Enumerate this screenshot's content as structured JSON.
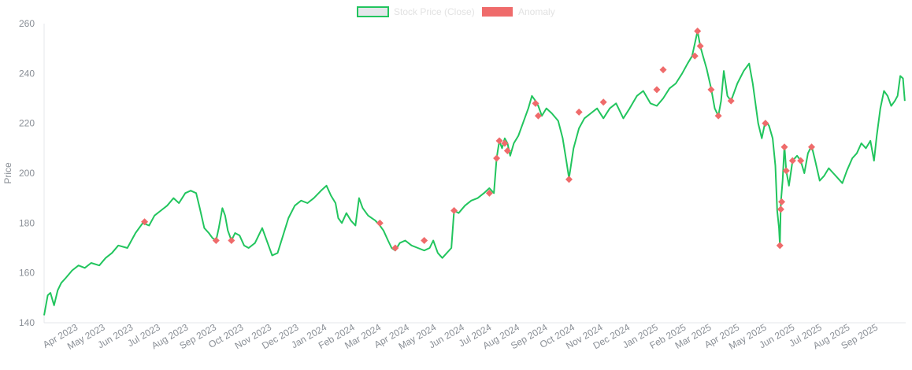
{
  "chart_data": {
    "type": "line",
    "ylabel": "Price",
    "xlabel": "",
    "ylim": [
      140,
      260
    ],
    "y_ticks": [
      "260",
      "240",
      "220",
      "200",
      "180",
      "160",
      "140"
    ],
    "x_tick_labels": [
      "Apr 2023",
      "May 2023",
      "Jun 2023",
      "Jul 2023",
      "Aug 2023",
      "Sep 2023",
      "Oct 2023",
      "Nov 2023",
      "Dec 2023",
      "Jan 2024",
      "Feb 2024",
      "Mar 2024",
      "Apr 2024",
      "May 2024",
      "Jun 2024",
      "Jul 2024",
      "Aug 2024",
      "Sep 2024",
      "Oct 2024",
      "Nov 2024",
      "Dec 2024",
      "Jan 2025",
      "Feb 2025",
      "Mar 2025",
      "Apr 2025",
      "May 2025",
      "Jun 2025",
      "Jul 2025",
      "Aug 2025",
      "Sep 2025"
    ],
    "grid": false,
    "legend_position": "top-center",
    "series": [
      {
        "name": "Stock Price (Close)",
        "color": "#22c55e",
        "fill": "#e5e7eb",
        "points": [
          [
            "2023-03-01",
            143
          ],
          [
            "2023-03-05",
            151
          ],
          [
            "2023-03-08",
            152
          ],
          [
            "2023-03-12",
            147
          ],
          [
            "2023-03-16",
            153
          ],
          [
            "2023-03-20",
            156
          ],
          [
            "2023-03-25",
            158
          ],
          [
            "2023-04-01",
            161
          ],
          [
            "2023-04-08",
            163
          ],
          [
            "2023-04-15",
            162
          ],
          [
            "2023-04-22",
            164
          ],
          [
            "2023-05-01",
            163
          ],
          [
            "2023-05-08",
            166
          ],
          [
            "2023-05-15",
            168
          ],
          [
            "2023-05-22",
            171
          ],
          [
            "2023-06-01",
            170
          ],
          [
            "2023-06-10",
            176
          ],
          [
            "2023-06-18",
            180
          ],
          [
            "2023-06-25",
            179
          ],
          [
            "2023-07-01",
            183
          ],
          [
            "2023-07-08",
            185
          ],
          [
            "2023-07-15",
            187
          ],
          [
            "2023-07-22",
            190
          ],
          [
            "2023-07-28",
            188
          ],
          [
            "2023-08-04",
            192
          ],
          [
            "2023-08-10",
            193
          ],
          [
            "2023-08-16",
            192
          ],
          [
            "2023-08-20",
            186
          ],
          [
            "2023-08-25",
            178
          ],
          [
            "2023-08-30",
            176
          ],
          [
            "2023-09-03",
            174
          ],
          [
            "2023-09-07",
            173
          ],
          [
            "2023-09-10",
            178
          ],
          [
            "2023-09-14",
            186
          ],
          [
            "2023-09-17",
            183
          ],
          [
            "2023-09-20",
            177
          ],
          [
            "2023-09-24",
            173
          ],
          [
            "2023-09-28",
            176
          ],
          [
            "2023-10-03",
            175
          ],
          [
            "2023-10-08",
            171
          ],
          [
            "2023-10-13",
            170
          ],
          [
            "2023-10-20",
            172
          ],
          [
            "2023-10-28",
            178
          ],
          [
            "2023-11-03",
            172
          ],
          [
            "2023-11-08",
            167
          ],
          [
            "2023-11-14",
            168
          ],
          [
            "2023-11-20",
            175
          ],
          [
            "2023-11-26",
            182
          ],
          [
            "2023-12-03",
            187
          ],
          [
            "2023-12-10",
            189
          ],
          [
            "2023-12-17",
            188
          ],
          [
            "2023-12-24",
            190
          ],
          [
            "2024-01-01",
            193
          ],
          [
            "2024-01-07",
            195
          ],
          [
            "2024-01-12",
            191
          ],
          [
            "2024-01-17",
            188
          ],
          [
            "2024-01-20",
            182
          ],
          [
            "2024-01-24",
            180
          ],
          [
            "2024-01-29",
            184
          ],
          [
            "2024-02-03",
            181
          ],
          [
            "2024-02-08",
            179
          ],
          [
            "2024-02-12",
            190
          ],
          [
            "2024-02-16",
            186
          ],
          [
            "2024-02-22",
            183
          ],
          [
            "2024-03-01",
            181
          ],
          [
            "2024-03-06",
            179
          ],
          [
            "2024-03-10",
            177
          ],
          [
            "2024-03-15",
            173
          ],
          [
            "2024-03-19",
            170
          ],
          [
            "2024-03-23",
            169
          ],
          [
            "2024-03-28",
            172
          ],
          [
            "2024-04-03",
            173
          ],
          [
            "2024-04-10",
            171
          ],
          [
            "2024-04-17",
            170
          ],
          [
            "2024-04-24",
            169
          ],
          [
            "2024-04-30",
            170
          ],
          [
            "2024-05-04",
            173
          ],
          [
            "2024-05-09",
            168
          ],
          [
            "2024-05-14",
            166
          ],
          [
            "2024-05-19",
            168
          ],
          [
            "2024-05-24",
            170
          ],
          [
            "2024-05-27",
            185
          ],
          [
            "2024-06-01",
            184
          ],
          [
            "2024-06-08",
            187
          ],
          [
            "2024-06-15",
            189
          ],
          [
            "2024-06-22",
            190
          ],
          [
            "2024-06-29",
            192
          ],
          [
            "2024-07-05",
            194
          ],
          [
            "2024-07-10",
            192
          ],
          [
            "2024-07-13",
            206
          ],
          [
            "2024-07-16",
            213
          ],
          [
            "2024-07-19",
            210
          ],
          [
            "2024-07-22",
            214
          ],
          [
            "2024-07-25",
            212
          ],
          [
            "2024-07-28",
            207
          ],
          [
            "2024-08-01",
            212
          ],
          [
            "2024-08-06",
            215
          ],
          [
            "2024-08-11",
            220
          ],
          [
            "2024-08-17",
            226
          ],
          [
            "2024-08-21",
            231
          ],
          [
            "2024-08-25",
            229
          ],
          [
            "2024-08-28",
            227
          ],
          [
            "2024-09-01",
            223
          ],
          [
            "2024-09-06",
            226
          ],
          [
            "2024-09-12",
            224
          ],
          [
            "2024-09-19",
            221
          ],
          [
            "2024-09-24",
            214
          ],
          [
            "2024-09-28",
            205
          ],
          [
            "2024-10-01",
            198
          ],
          [
            "2024-10-06",
            210
          ],
          [
            "2024-10-12",
            218
          ],
          [
            "2024-10-18",
            222
          ],
          [
            "2024-10-25",
            224
          ],
          [
            "2024-11-01",
            226
          ],
          [
            "2024-11-08",
            222
          ],
          [
            "2024-11-15",
            226
          ],
          [
            "2024-11-22",
            228
          ],
          [
            "2024-11-30",
            222
          ],
          [
            "2024-12-07",
            226
          ],
          [
            "2024-12-15",
            231
          ],
          [
            "2024-12-22",
            233
          ],
          [
            "2024-12-30",
            228
          ],
          [
            "2025-01-06",
            227
          ],
          [
            "2025-01-13",
            230
          ],
          [
            "2025-01-20",
            234
          ],
          [
            "2025-01-27",
            236
          ],
          [
            "2025-02-03",
            240
          ],
          [
            "2025-02-09",
            244
          ],
          [
            "2025-02-14",
            247
          ],
          [
            "2025-02-17",
            252
          ],
          [
            "2025-02-20",
            257
          ],
          [
            "2025-02-23",
            251
          ],
          [
            "2025-02-26",
            247
          ],
          [
            "2025-03-02",
            242
          ],
          [
            "2025-03-07",
            234
          ],
          [
            "2025-03-11",
            226
          ],
          [
            "2025-03-15",
            223
          ],
          [
            "2025-03-18",
            229
          ],
          [
            "2025-03-21",
            241
          ],
          [
            "2025-03-25",
            231
          ],
          [
            "2025-03-29",
            229
          ],
          [
            "2025-04-05",
            236
          ],
          [
            "2025-04-12",
            241
          ],
          [
            "2025-04-18",
            244
          ],
          [
            "2025-04-22",
            236
          ],
          [
            "2025-04-28",
            220
          ],
          [
            "2025-05-02",
            214
          ],
          [
            "2025-05-06",
            221
          ],
          [
            "2025-05-10",
            219
          ],
          [
            "2025-05-14",
            214
          ],
          [
            "2025-05-17",
            203
          ],
          [
            "2025-05-19",
            185
          ],
          [
            "2025-05-21",
            178
          ],
          [
            "2025-05-22",
            171
          ],
          [
            "2025-05-23",
            188
          ],
          [
            "2025-05-25",
            197
          ],
          [
            "2025-05-27",
            211
          ],
          [
            "2025-05-29",
            201
          ],
          [
            "2025-06-01",
            195
          ],
          [
            "2025-06-05",
            205
          ],
          [
            "2025-06-10",
            207
          ],
          [
            "2025-06-14",
            205
          ],
          [
            "2025-06-18",
            200
          ],
          [
            "2025-06-22",
            208
          ],
          [
            "2025-06-26",
            211
          ],
          [
            "2025-06-30",
            205
          ],
          [
            "2025-07-05",
            197
          ],
          [
            "2025-07-10",
            199
          ],
          [
            "2025-07-15",
            202
          ],
          [
            "2025-07-20",
            200
          ],
          [
            "2025-07-25",
            198
          ],
          [
            "2025-07-30",
            196
          ],
          [
            "2025-08-04",
            201
          ],
          [
            "2025-08-10",
            206
          ],
          [
            "2025-08-15",
            208
          ],
          [
            "2025-08-20",
            212
          ],
          [
            "2025-08-25",
            210
          ],
          [
            "2025-08-30",
            213
          ],
          [
            "2025-09-03",
            205
          ],
          [
            "2025-09-06",
            215
          ],
          [
            "2025-09-10",
            226
          ],
          [
            "2025-09-14",
            233
          ],
          [
            "2025-09-18",
            231
          ],
          [
            "2025-09-22",
            227
          ],
          [
            "2025-09-26",
            229
          ],
          [
            "2025-09-29",
            231
          ],
          [
            "2025-10-02",
            239
          ],
          [
            "2025-10-05",
            238
          ],
          [
            "2025-10-07",
            229
          ]
        ]
      },
      {
        "name": "Anomaly",
        "color": "#ef6b6b",
        "points": [
          [
            "2023-06-20",
            180.5
          ],
          [
            "2023-09-07",
            173
          ],
          [
            "2023-09-24",
            173
          ],
          [
            "2024-03-06",
            180
          ],
          [
            "2024-03-23",
            170
          ],
          [
            "2024-04-24",
            173
          ],
          [
            "2024-05-27",
            185
          ],
          [
            "2024-07-05",
            192
          ],
          [
            "2024-07-13",
            206
          ],
          [
            "2024-07-16",
            213
          ],
          [
            "2024-07-22",
            212
          ],
          [
            "2024-07-25",
            209
          ],
          [
            "2024-08-25",
            228
          ],
          [
            "2024-08-28",
            223
          ],
          [
            "2024-10-01",
            197.5
          ],
          [
            "2024-10-12",
            224.5
          ],
          [
            "2024-11-08",
            228.5
          ],
          [
            "2025-01-06",
            233.5
          ],
          [
            "2025-01-13",
            241.5
          ],
          [
            "2025-02-17",
            247
          ],
          [
            "2025-02-20",
            257
          ],
          [
            "2025-02-23",
            251
          ],
          [
            "2025-03-07",
            233.5
          ],
          [
            "2025-03-15",
            223
          ],
          [
            "2025-03-29",
            229
          ],
          [
            "2025-05-06",
            220
          ],
          [
            "2025-05-22",
            171
          ],
          [
            "2025-05-23",
            185.5
          ],
          [
            "2025-05-24",
            188.5
          ],
          [
            "2025-05-27",
            210.5
          ],
          [
            "2025-05-29",
            201
          ],
          [
            "2025-06-05",
            205
          ],
          [
            "2025-06-14",
            205
          ],
          [
            "2025-06-26",
            210.5
          ]
        ]
      }
    ]
  }
}
